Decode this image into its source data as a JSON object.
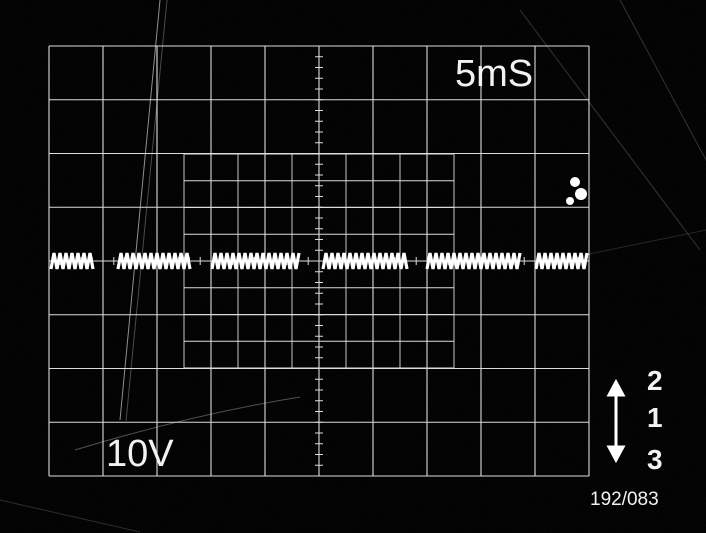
{
  "photo": {
    "subject": "oscilloscope screen photograph",
    "timebase_label": "5mS",
    "voltage_label": "10V",
    "plate_code": "192/083",
    "channel_markers": [
      "2",
      "1",
      "3"
    ],
    "trace_color": "#ffffff",
    "grid_color": "#dcdcdc",
    "background_color": "#020202"
  }
}
